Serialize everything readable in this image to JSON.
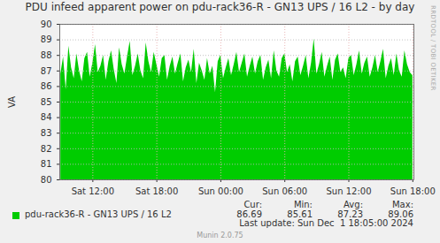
{
  "chart_data": {
    "type": "area",
    "title": "PDU infeed apparent power on pdu-rack36-R - GN13 UPS / 16 L2 - by day",
    "y_label": "VA",
    "x": [
      9,
      9.25,
      9.5,
      9.75,
      10,
      10.25,
      10.5,
      10.75,
      11,
      11.25,
      11.5,
      11.75,
      12,
      12.25,
      12.5,
      12.75,
      13,
      13.25,
      13.5,
      13.75,
      14,
      14.25,
      14.5,
      14.75,
      15,
      15.25,
      15.5,
      15.75,
      16,
      16.25,
      16.5,
      16.75,
      17,
      17.25,
      17.5,
      17.75,
      18,
      18.25,
      18.5,
      18.75,
      19,
      19.25,
      19.5,
      19.75,
      20,
      20.25,
      20.5,
      20.75,
      21,
      21.25,
      21.5,
      21.75,
      22,
      22.25,
      22.5,
      22.75,
      23,
      23.25,
      23.5,
      23.75,
      24,
      24.25,
      24.5,
      24.75,
      25,
      25.25,
      25.5,
      25.75,
      26,
      26.25,
      26.5,
      26.75,
      27,
      27.25,
      27.5,
      27.75,
      28,
      28.25,
      28.5,
      28.75,
      29,
      29.25,
      29.5,
      29.75,
      30,
      30.25,
      30.5,
      30.75,
      31,
      31.25,
      31.5,
      31.75,
      32,
      32.25,
      32.5,
      32.75,
      33,
      33.25,
      33.5,
      33.75,
      34,
      34.25,
      34.5,
      34.75,
      35,
      35.25,
      35.5,
      35.75,
      36,
      36.25,
      36.5,
      36.75,
      37,
      37.25,
      37.5,
      37.75,
      38,
      38.25,
      38.5,
      38.75,
      39,
      39.25,
      39.5,
      39.75,
      40,
      40.25,
      40.5,
      40.75,
      41,
      41.25,
      41.5,
      41.75,
      42
    ],
    "series": [
      {
        "name": "pdu-rack36-R - GN13 UPS / 16 L2",
        "color": "#00cc00",
        "values": [
          86.8,
          87.9,
          85.8,
          88.6,
          87.2,
          86.5,
          88.1,
          87.0,
          86.3,
          87.8,
          88.2,
          86.6,
          87.5,
          88.7,
          86.9,
          87.3,
          88.0,
          86.4,
          87.6,
          88.3,
          87.1,
          86.2,
          88.5,
          87.4,
          86.8,
          87.9,
          88.9,
          86.7,
          87.3,
          88.1,
          87.0,
          86.5,
          88.8,
          87.6,
          86.9,
          88.2,
          87.4,
          86.6,
          87.8,
          88.0,
          86.4,
          87.3,
          87.9,
          86.8,
          87.5,
          88.1,
          86.3,
          87.2,
          87.7,
          86.9,
          88.4,
          86.2,
          87.5,
          87.0,
          86.4,
          87.8,
          86.8,
          87.3,
          85.61,
          87.6,
          88.0,
          86.5,
          87.2,
          87.8,
          86.7,
          87.4,
          88.2,
          86.9,
          87.5,
          88.1,
          86.6,
          87.3,
          87.9,
          86.8,
          87.6,
          88.0,
          86.4,
          87.2,
          87.7,
          86.5,
          88.3,
          87.0,
          86.6,
          87.8,
          88.1,
          86.9,
          87.4,
          86.3,
          87.6,
          87.9,
          86.7,
          87.3,
          88.0,
          86.5,
          87.5,
          89.06,
          86.8,
          87.4,
          88.2,
          86.6,
          87.3,
          87.9,
          86.4,
          87.7,
          88.1,
          86.9,
          87.2,
          86.5,
          87.8,
          88.0,
          86.7,
          87.4,
          88.3,
          86.8,
          87.5,
          87.9,
          86.6,
          87.2,
          88.0,
          86.9,
          87.6,
          88.4,
          86.5,
          87.3,
          87.8,
          86.7,
          88.1,
          87.0,
          86.6,
          88.3,
          87.4,
          86.9,
          86.69
        ]
      }
    ],
    "xlim": [
      8.9,
      42.1
    ],
    "xticks": [
      {
        "value": 12,
        "label": "Sat 12:00"
      },
      {
        "value": 18,
        "label": "Sat 18:00"
      },
      {
        "value": 24,
        "label": "Sun 00:00"
      },
      {
        "value": 30,
        "label": "Sun 06:00"
      },
      {
        "value": 36,
        "label": "Sun 12:00"
      },
      {
        "value": 42,
        "label": "Sun 18:00"
      }
    ],
    "ylim": [
      80,
      90
    ],
    "yticks": [
      80,
      81,
      82,
      83,
      84,
      85,
      86,
      87,
      88,
      89,
      90
    ],
    "grid": true,
    "legend": "bottom",
    "stats": {
      "headers": [
        "Cur:",
        "Min:",
        "Avg:",
        "Max:"
      ],
      "values": [
        86.69,
        85.61,
        87.23,
        89.06
      ]
    },
    "footer": "Last update: Sun Dec  1 18:05:00 2024",
    "credit": "Munin 2.0.75",
    "side_text": "RRDTOOL / TOBI OETIKER"
  }
}
